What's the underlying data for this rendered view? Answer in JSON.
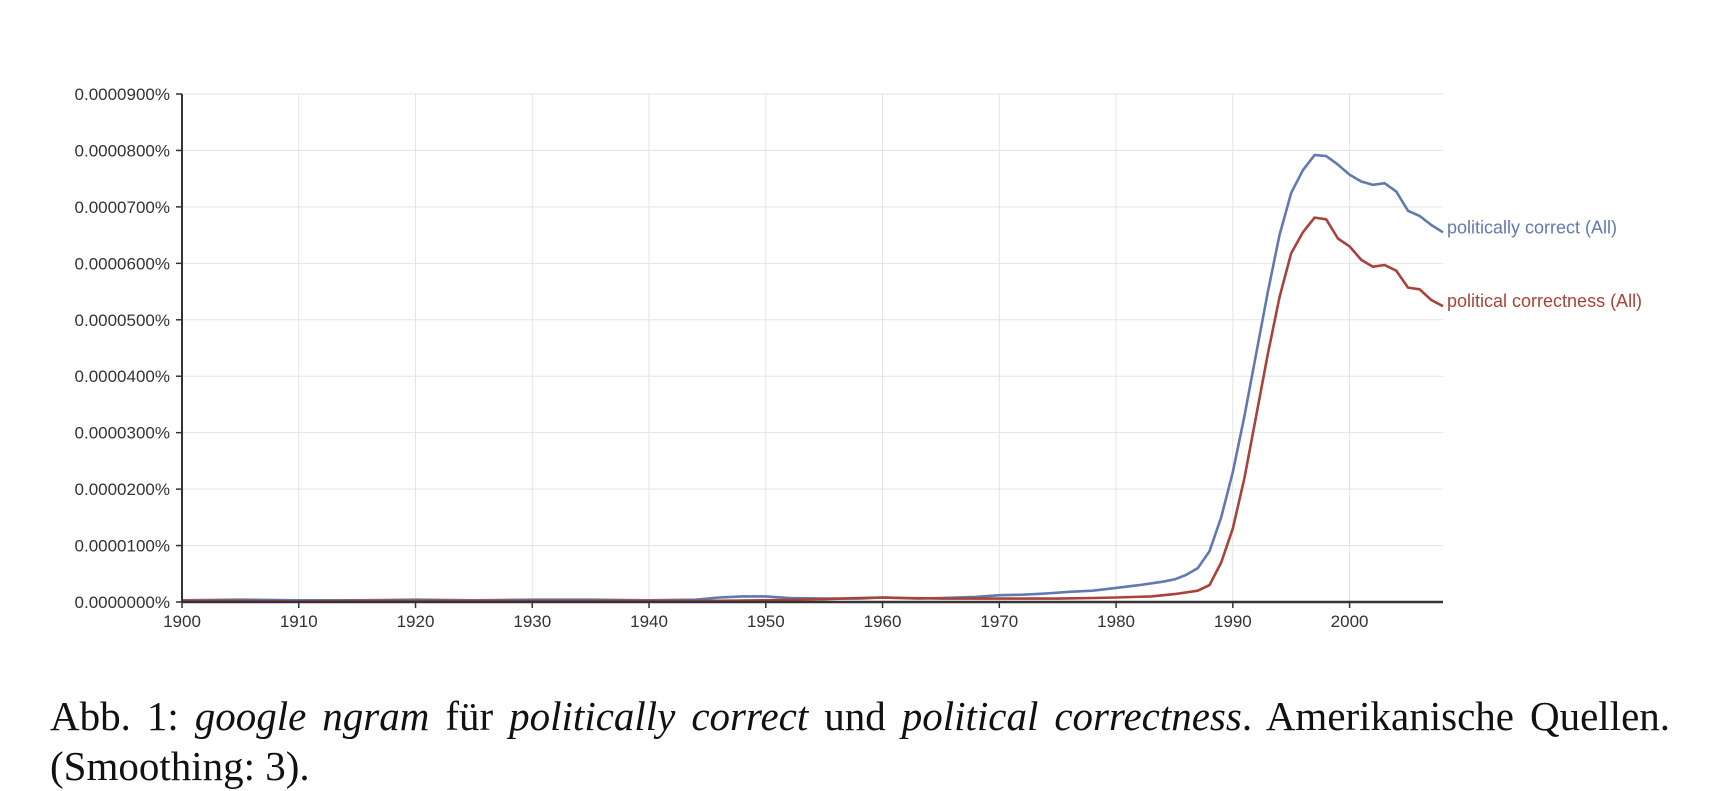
{
  "caption": {
    "prefix": "Abb. 1: ",
    "term_tool": "google ngram",
    "word_fuer": " für ",
    "term_1": "politically correct",
    "word_und": " und ",
    "term_2": "political correctness",
    "suffix": ". Amerikanische Quellen. (Smoothing: 3)."
  },
  "chart_data": {
    "type": "line",
    "xlabel": "",
    "ylabel": "",
    "xlim": [
      1900,
      2008
    ],
    "ylim": [
      0,
      9e-05
    ],
    "x_ticks": [
      1900,
      1910,
      1920,
      1930,
      1940,
      1950,
      1960,
      1970,
      1980,
      1990,
      2000
    ],
    "y_ticks": [
      0,
      1e-05,
      2e-05,
      3e-05,
      4e-05,
      5e-05,
      6e-05,
      7e-05,
      8e-05,
      9e-05
    ],
    "y_tick_labels": [
      "0.0000000%",
      "0.0000100%",
      "0.0000200%",
      "0.0000300%",
      "0.0000400%",
      "0.0000500%",
      "0.0000600%",
      "0.0000700%",
      "0.0000800%",
      "0.0000900%"
    ],
    "grid": true,
    "legend": "line-end labels",
    "series": [
      {
        "name": "politically correct (All)",
        "color": "#6278b0",
        "points": [
          [
            1900,
            3e-07
          ],
          [
            1905,
            4e-07
          ],
          [
            1910,
            3e-07
          ],
          [
            1915,
            3e-07
          ],
          [
            1920,
            4e-07
          ],
          [
            1925,
            3e-07
          ],
          [
            1930,
            4e-07
          ],
          [
            1935,
            4e-07
          ],
          [
            1940,
            3e-07
          ],
          [
            1944,
            4e-07
          ],
          [
            1946,
            8e-07
          ],
          [
            1948,
            1e-06
          ],
          [
            1950,
            1e-06
          ],
          [
            1952,
            7e-07
          ],
          [
            1955,
            6e-07
          ],
          [
            1958,
            6e-07
          ],
          [
            1960,
            8e-07
          ],
          [
            1963,
            6e-07
          ],
          [
            1965,
            7e-07
          ],
          [
            1968,
            9e-07
          ],
          [
            1970,
            1.2e-06
          ],
          [
            1972,
            1.3e-06
          ],
          [
            1974,
            1.5e-06
          ],
          [
            1976,
            1.8e-06
          ],
          [
            1978,
            2e-06
          ],
          [
            1980,
            2.5e-06
          ],
          [
            1982,
            3e-06
          ],
          [
            1984,
            3.6e-06
          ],
          [
            1985,
            4e-06
          ],
          [
            1986,
            4.8e-06
          ],
          [
            1987,
            6e-06
          ],
          [
            1988,
            9e-06
          ],
          [
            1989,
            1.5e-05
          ],
          [
            1990,
            2.3e-05
          ],
          [
            1991,
            3.3e-05
          ],
          [
            1992,
            4.4e-05
          ],
          [
            1993,
            5.5e-05
          ],
          [
            1994,
            6.5e-05
          ],
          [
            1995,
            7.25e-05
          ],
          [
            1996,
            7.65e-05
          ],
          [
            1997,
            7.92e-05
          ],
          [
            1998,
            7.9e-05
          ],
          [
            1999,
            7.75e-05
          ],
          [
            2000,
            7.57e-05
          ],
          [
            2001,
            7.45e-05
          ],
          [
            2002,
            7.39e-05
          ],
          [
            2003,
            7.42e-05
          ],
          [
            2004,
            7.27e-05
          ],
          [
            2005,
            6.93e-05
          ],
          [
            2006,
            6.84e-05
          ],
          [
            2007,
            6.68e-05
          ],
          [
            2008,
            6.55e-05
          ]
        ]
      },
      {
        "name": "political correctness (All)",
        "color": "#a8433a",
        "points": [
          [
            1900,
            2e-07
          ],
          [
            1905,
            2e-07
          ],
          [
            1910,
            1e-07
          ],
          [
            1915,
            2e-07
          ],
          [
            1920,
            2e-07
          ],
          [
            1925,
            2e-07
          ],
          [
            1930,
            2e-07
          ],
          [
            1935,
            2e-07
          ],
          [
            1940,
            2e-07
          ],
          [
            1945,
            2e-07
          ],
          [
            1950,
            3e-07
          ],
          [
            1955,
            5e-07
          ],
          [
            1958,
            7e-07
          ],
          [
            1960,
            8e-07
          ],
          [
            1962,
            7e-07
          ],
          [
            1965,
            6e-07
          ],
          [
            1968,
            6e-07
          ],
          [
            1970,
            6e-07
          ],
          [
            1975,
            6e-07
          ],
          [
            1978,
            7e-07
          ],
          [
            1980,
            8e-07
          ],
          [
            1983,
            1e-06
          ],
          [
            1985,
            1.4e-06
          ],
          [
            1987,
            2e-06
          ],
          [
            1988,
            3e-06
          ],
          [
            1989,
            7e-06
          ],
          [
            1990,
            1.3e-05
          ],
          [
            1991,
            2.2e-05
          ],
          [
            1992,
            3.3e-05
          ],
          [
            1993,
            4.4e-05
          ],
          [
            1994,
            5.4e-05
          ],
          [
            1995,
            6.18e-05
          ],
          [
            1996,
            6.55e-05
          ],
          [
            1997,
            6.81e-05
          ],
          [
            1998,
            6.78e-05
          ],
          [
            1999,
            6.44e-05
          ],
          [
            2000,
            6.3e-05
          ],
          [
            2001,
            6.06e-05
          ],
          [
            2002,
            5.94e-05
          ],
          [
            2003,
            5.97e-05
          ],
          [
            2004,
            5.87e-05
          ],
          [
            2005,
            5.57e-05
          ],
          [
            2006,
            5.54e-05
          ],
          [
            2007,
            5.35e-05
          ],
          [
            2008,
            5.24e-05
          ]
        ]
      }
    ]
  }
}
